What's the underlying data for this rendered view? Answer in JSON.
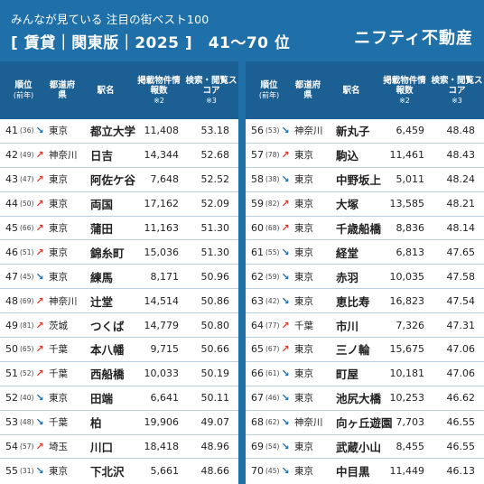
{
  "header": {
    "subtitle": "みんなが見ている 注目の街ベスト100",
    "title": "[ 賃貸｜関東版｜2025 ]　41〜70 位",
    "brand": "ニフティ不動産"
  },
  "columns": {
    "rank": "順位",
    "rank_sub": "(前年)",
    "pref": "都道府県",
    "station": "駅名",
    "count": "掲載物件情報数",
    "count_note": "※2",
    "score": "検索・閲覧スコア",
    "score_note": "※3"
  },
  "arrow_icons": {
    "up": "↗",
    "down": "↘"
  },
  "colors": {
    "up": "#e03a2b",
    "down": "#1f6fa8",
    "header": "#1c5f93",
    "background": "#1f6fa8"
  },
  "left_rows": [
    {
      "rank": "41",
      "prev": "(36)",
      "trend": "down",
      "pref": "東京",
      "station": "都立大学",
      "count": "11,408",
      "score": "53.18"
    },
    {
      "rank": "42",
      "prev": "(49)",
      "trend": "up",
      "pref": "神奈川",
      "station": "日吉",
      "count": "14,344",
      "score": "52.68"
    },
    {
      "rank": "43",
      "prev": "(47)",
      "trend": "up",
      "pref": "東京",
      "station": "阿佐ケ谷",
      "count": "7,648",
      "score": "52.52"
    },
    {
      "rank": "44",
      "prev": "(50)",
      "trend": "up",
      "pref": "東京",
      "station": "両国",
      "count": "17,162",
      "score": "52.09"
    },
    {
      "rank": "45",
      "prev": "(66)",
      "trend": "up",
      "pref": "東京",
      "station": "蒲田",
      "count": "11,163",
      "score": "51.30"
    },
    {
      "rank": "46",
      "prev": "(51)",
      "trend": "up",
      "pref": "東京",
      "station": "錦糸町",
      "count": "15,036",
      "score": "51.30"
    },
    {
      "rank": "47",
      "prev": "(45)",
      "trend": "down",
      "pref": "東京",
      "station": "練馬",
      "count": "8,171",
      "score": "50.96"
    },
    {
      "rank": "48",
      "prev": "(69)",
      "trend": "up",
      "pref": "神奈川",
      "station": "辻堂",
      "count": "14,514",
      "score": "50.86"
    },
    {
      "rank": "49",
      "prev": "(81)",
      "trend": "up",
      "pref": "茨城",
      "station": "つくば",
      "count": "14,779",
      "score": "50.80"
    },
    {
      "rank": "50",
      "prev": "(65)",
      "trend": "up",
      "pref": "千葉",
      "station": "本八幡",
      "count": "9,715",
      "score": "50.66"
    },
    {
      "rank": "51",
      "prev": "(52)",
      "trend": "up",
      "pref": "千葉",
      "station": "西船橋",
      "count": "10,033",
      "score": "50.19"
    },
    {
      "rank": "52",
      "prev": "(40)",
      "trend": "down",
      "pref": "東京",
      "station": "田端",
      "count": "6,641",
      "score": "50.11"
    },
    {
      "rank": "53",
      "prev": "(48)",
      "trend": "down",
      "pref": "千葉",
      "station": "柏",
      "count": "19,906",
      "score": "49.07"
    },
    {
      "rank": "54",
      "prev": "(57)",
      "trend": "up",
      "pref": "埼玉",
      "station": "川口",
      "count": "18,418",
      "score": "48.96"
    },
    {
      "rank": "55",
      "prev": "(31)",
      "trend": "down",
      "pref": "東京",
      "station": "下北沢",
      "count": "5,661",
      "score": "48.66"
    }
  ],
  "right_rows": [
    {
      "rank": "56",
      "prev": "(53)",
      "trend": "down",
      "pref": "神奈川",
      "station": "新丸子",
      "count": "6,459",
      "score": "48.48"
    },
    {
      "rank": "57",
      "prev": "(78)",
      "trend": "up",
      "pref": "東京",
      "station": "駒込",
      "count": "11,461",
      "score": "48.43"
    },
    {
      "rank": "58",
      "prev": "(38)",
      "trend": "down",
      "pref": "東京",
      "station": "中野坂上",
      "count": "5,011",
      "score": "48.24"
    },
    {
      "rank": "59",
      "prev": "(82)",
      "trend": "up",
      "pref": "東京",
      "station": "大塚",
      "count": "13,585",
      "score": "48.21"
    },
    {
      "rank": "60",
      "prev": "(68)",
      "trend": "up",
      "pref": "東京",
      "station": "千歳船橋",
      "count": "8,836",
      "score": "48.14"
    },
    {
      "rank": "61",
      "prev": "(55)",
      "trend": "down",
      "pref": "東京",
      "station": "経堂",
      "count": "6,813",
      "score": "47.65"
    },
    {
      "rank": "62",
      "prev": "(59)",
      "trend": "down",
      "pref": "東京",
      "station": "赤羽",
      "count": "10,035",
      "score": "47.58"
    },
    {
      "rank": "63",
      "prev": "(42)",
      "trend": "down",
      "pref": "東京",
      "station": "恵比寿",
      "count": "16,823",
      "score": "47.54"
    },
    {
      "rank": "64",
      "prev": "(77)",
      "trend": "up",
      "pref": "千葉",
      "station": "市川",
      "count": "7,326",
      "score": "47.31"
    },
    {
      "rank": "65",
      "prev": "(67)",
      "trend": "up",
      "pref": "東京",
      "station": "三ノ輪",
      "count": "15,675",
      "score": "47.06"
    },
    {
      "rank": "66",
      "prev": "(61)",
      "trend": "down",
      "pref": "東京",
      "station": "町屋",
      "count": "10,181",
      "score": "47.06"
    },
    {
      "rank": "67",
      "prev": "(46)",
      "trend": "down",
      "pref": "東京",
      "station": "池尻大橋",
      "count": "10,253",
      "score": "46.62"
    },
    {
      "rank": "68",
      "prev": "(62)",
      "trend": "down",
      "pref": "神奈川",
      "station": "向ヶ丘遊園",
      "count": "7,703",
      "score": "46.55"
    },
    {
      "rank": "69",
      "prev": "(54)",
      "trend": "down",
      "pref": "東京",
      "station": "武蔵小山",
      "count": "8,455",
      "score": "46.55"
    },
    {
      "rank": "70",
      "prev": "(45)",
      "trend": "down",
      "pref": "東京",
      "station": "中目黒",
      "count": "11,449",
      "score": "46.13"
    }
  ]
}
